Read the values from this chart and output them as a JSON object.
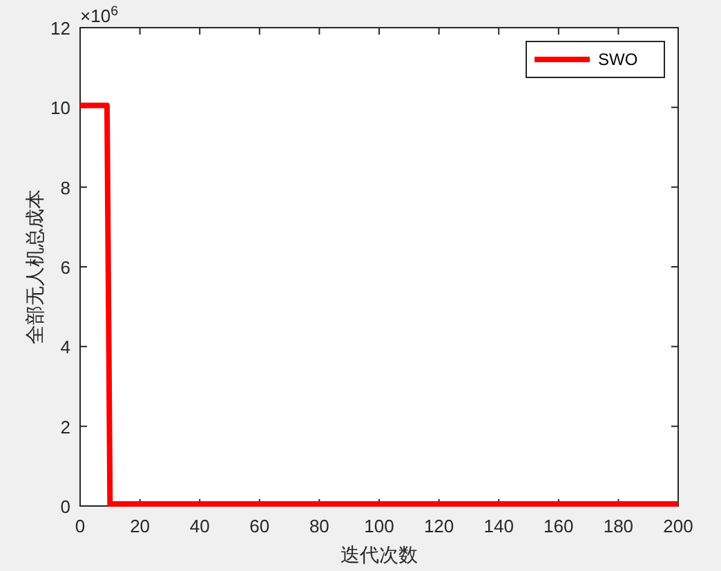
{
  "chart_data": {
    "type": "line",
    "xlabel": "迭代次数",
    "ylabel": "全部无人机总成本",
    "annotations": [
      "×10$^{6}$"
    ],
    "x": [
      0,
      9,
      10,
      200
    ],
    "series": [
      {
        "name": "SWO",
        "color": "#ff0000",
        "values": [
          10.05,
          10.05,
          0.05,
          0.05
        ]
      }
    ],
    "xlim": [
      0,
      200
    ],
    "xticks": [
      0,
      20,
      40,
      60,
      80,
      100,
      120,
      140,
      160,
      180,
      200
    ],
    "ylim": [
      0,
      12
    ],
    "yticks": [
      0,
      2,
      4,
      6,
      8,
      10,
      12
    ],
    "grid": false,
    "legend": "top right",
    "line_style": "solid",
    "marker": "none"
  }
}
